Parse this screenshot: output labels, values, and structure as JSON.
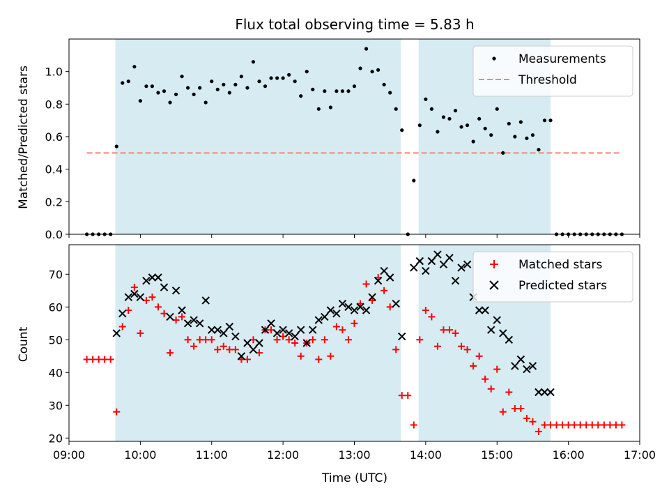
{
  "chart_data": [
    {
      "type": "scatter",
      "title": "Flux total observing time = 5.83 h",
      "xlabel": "",
      "ylabel": "Matched/Predicted stars",
      "xlim": [
        "09:00",
        "17:00"
      ],
      "ylim": [
        0,
        1.2
      ],
      "yticks": [
        0.0,
        0.2,
        0.4,
        0.6,
        0.8,
        1.0
      ],
      "ytick_labels": [
        "0.0",
        "0.2",
        "0.4",
        "0.6",
        "0.8",
        "1.0"
      ],
      "legend_position": "top-right",
      "grid": false,
      "shaded_intervals": [
        [
          "09:39",
          "13:39"
        ],
        [
          "13:54",
          "15:45"
        ]
      ],
      "shade_color": "#add8e6",
      "threshold": {
        "name": "Threshold",
        "value": 0.5,
        "x_range": [
          "09:15",
          "16:45"
        ],
        "color": "#ff7f7f"
      },
      "series": [
        {
          "name": "Measurements",
          "color": "#000000",
          "x": [
            "09:15",
            "09:20",
            "09:25",
            "09:30",
            "09:35",
            "09:40",
            "09:45",
            "09:50",
            "09:55",
            "10:00",
            "10:05",
            "10:10",
            "10:15",
            "10:20",
            "10:25",
            "10:30",
            "10:35",
            "10:40",
            "10:45",
            "10:50",
            "10:55",
            "11:00",
            "11:05",
            "11:10",
            "11:15",
            "11:20",
            "11:25",
            "11:30",
            "11:35",
            "11:40",
            "11:45",
            "11:50",
            "11:55",
            "12:00",
            "12:05",
            "12:10",
            "12:15",
            "12:20",
            "12:25",
            "12:30",
            "12:35",
            "12:40",
            "12:45",
            "12:50",
            "12:55",
            "13:00",
            "13:05",
            "13:10",
            "13:15",
            "13:20",
            "13:25",
            "13:30",
            "13:35",
            "13:40",
            "13:45",
            "13:50",
            "13:55",
            "14:00",
            "14:05",
            "14:10",
            "14:15",
            "14:20",
            "14:25",
            "14:30",
            "14:35",
            "14:40",
            "14:45",
            "14:50",
            "14:55",
            "15:00",
            "15:05",
            "15:10",
            "15:15",
            "15:20",
            "15:25",
            "15:30",
            "15:35",
            "15:40",
            "15:45",
            "15:50",
            "15:55",
            "16:00",
            "16:05",
            "16:10",
            "16:15",
            "16:20",
            "16:25",
            "16:30",
            "16:35",
            "16:40",
            "16:45"
          ],
          "y": [
            0,
            0,
            0,
            0,
            0,
            0.54,
            0.93,
            0.94,
            1.03,
            0.82,
            0.91,
            0.91,
            0.87,
            0.88,
            0.81,
            0.86,
            0.97,
            0.9,
            0.86,
            0.9,
            0.81,
            0.94,
            0.89,
            0.92,
            0.87,
            0.92,
            0.97,
            0.9,
            1.06,
            0.94,
            0.91,
            0.96,
            0.96,
            0.96,
            0.98,
            0.94,
            0.85,
            1.0,
            0.89,
            0.77,
            0.88,
            0.78,
            0.88,
            0.88,
            0.88,
            0.91,
            1.02,
            1.14,
            1.0,
            1.01,
            0.92,
            0.87,
            0.77,
            0.64,
            0,
            0.33,
            0.67,
            0.83,
            0.77,
            0.63,
            0.72,
            0.71,
            0.76,
            0.66,
            0.67,
            0.57,
            0.71,
            0.65,
            0.61,
            0.77,
            0.5,
            0.68,
            0.6,
            0.69,
            0.59,
            0.61,
            0.52,
            0.7,
            0.7,
            0,
            0,
            0,
            0,
            0,
            0,
            0,
            0,
            0,
            0,
            0,
            0
          ]
        }
      ]
    },
    {
      "type": "scatter",
      "title": "",
      "xlabel": "Time (UTC)",
      "ylabel": "Count",
      "xlim": [
        "09:00",
        "17:00"
      ],
      "ylim": [
        19,
        79
      ],
      "yticks": [
        20,
        30,
        40,
        50,
        60,
        70
      ],
      "xticks": [
        "09:00",
        "10:00",
        "11:00",
        "12:00",
        "13:00",
        "14:00",
        "15:00",
        "16:00",
        "17:00"
      ],
      "legend_position": "top-right",
      "grid": false,
      "shaded_intervals": [
        [
          "09:39",
          "13:39"
        ],
        [
          "13:54",
          "15:45"
        ]
      ],
      "shade_color": "#add8e6",
      "series": [
        {
          "name": "Matched stars",
          "marker": "plus",
          "color": "#ff0000",
          "x": [
            "09:15",
            "09:20",
            "09:25",
            "09:30",
            "09:35",
            "09:40",
            "09:45",
            "09:50",
            "09:55",
            "10:00",
            "10:05",
            "10:10",
            "10:15",
            "10:20",
            "10:25",
            "10:30",
            "10:35",
            "10:40",
            "10:45",
            "10:50",
            "10:55",
            "11:00",
            "11:05",
            "11:10",
            "11:15",
            "11:20",
            "11:25",
            "11:30",
            "11:35",
            "11:40",
            "11:45",
            "11:50",
            "11:55",
            "12:00",
            "12:05",
            "12:10",
            "12:15",
            "12:20",
            "12:25",
            "12:30",
            "12:35",
            "12:40",
            "12:45",
            "12:50",
            "12:55",
            "13:00",
            "13:05",
            "13:10",
            "13:15",
            "13:20",
            "13:25",
            "13:30",
            "13:35",
            "13:40",
            "13:45",
            "13:50",
            "13:55",
            "14:00",
            "14:05",
            "14:10",
            "14:15",
            "14:20",
            "14:25",
            "14:30",
            "14:35",
            "14:40",
            "14:45",
            "14:50",
            "14:55",
            "15:00",
            "15:05",
            "15:10",
            "15:15",
            "15:20",
            "15:25",
            "15:30",
            "15:35",
            "15:40",
            "15:45",
            "15:50",
            "15:55",
            "16:00",
            "16:05",
            "16:10",
            "16:15",
            "16:20",
            "16:25",
            "16:30",
            "16:35",
            "16:40",
            "16:45"
          ],
          "y": [
            44,
            44,
            44,
            44,
            44,
            28,
            54,
            59,
            66,
            52,
            62,
            63,
            60,
            58,
            46,
            56,
            57,
            50,
            48,
            50,
            50,
            50,
            47,
            48,
            47,
            47,
            44,
            44,
            50,
            46,
            53,
            53,
            50,
            51,
            50,
            49,
            45,
            49,
            50,
            44,
            50,
            45,
            54,
            53,
            50,
            55,
            61,
            67,
            62,
            69,
            65,
            60,
            47,
            33,
            33,
            24,
            50,
            59,
            57,
            48,
            53,
            53,
            52,
            48,
            47,
            42,
            45,
            38,
            35,
            41,
            28,
            34,
            29,
            29,
            26,
            25,
            22,
            24,
            24,
            24,
            24,
            24,
            24,
            24,
            24,
            24,
            24,
            24,
            24,
            24,
            24
          ]
        },
        {
          "name": "Predicted stars",
          "marker": "x",
          "color": "#000000",
          "x": [
            "09:40",
            "09:45",
            "09:50",
            "09:55",
            "10:00",
            "10:05",
            "10:10",
            "10:15",
            "10:20",
            "10:25",
            "10:30",
            "10:35",
            "10:40",
            "10:45",
            "10:50",
            "10:55",
            "11:00",
            "11:05",
            "11:10",
            "11:15",
            "11:20",
            "11:25",
            "11:30",
            "11:35",
            "11:40",
            "11:45",
            "11:50",
            "11:55",
            "12:00",
            "12:05",
            "12:10",
            "12:15",
            "12:20",
            "12:25",
            "12:30",
            "12:35",
            "12:40",
            "12:45",
            "12:50",
            "12:55",
            "13:00",
            "13:05",
            "13:10",
            "13:15",
            "13:20",
            "13:25",
            "13:30",
            "13:35",
            "13:40",
            "13:50",
            "13:55",
            "14:00",
            "14:05",
            "14:10",
            "14:15",
            "14:20",
            "14:25",
            "14:30",
            "14:35",
            "14:40",
            "14:45",
            "14:50",
            "14:55",
            "15:00",
            "15:05",
            "15:10",
            "15:15",
            "15:20",
            "15:25",
            "15:30",
            "15:35",
            "15:40",
            "15:45"
          ],
          "y": [
            52,
            58,
            63,
            64,
            63,
            68,
            69,
            69,
            66,
            57,
            65,
            59,
            55,
            56,
            55,
            62,
            53,
            53,
            52,
            54,
            51,
            45,
            49,
            47,
            49,
            53,
            55,
            52,
            53,
            52,
            51,
            53,
            49,
            53,
            56,
            57,
            59,
            58,
            61,
            60,
            59,
            60,
            59,
            63,
            68,
            71,
            69,
            61,
            51,
            72,
            74,
            71,
            74,
            76,
            73,
            75,
            68,
            72,
            73,
            63,
            59,
            59,
            53,
            56,
            52,
            50,
            42,
            44,
            41,
            42,
            34,
            34,
            34
          ]
        }
      ]
    }
  ]
}
